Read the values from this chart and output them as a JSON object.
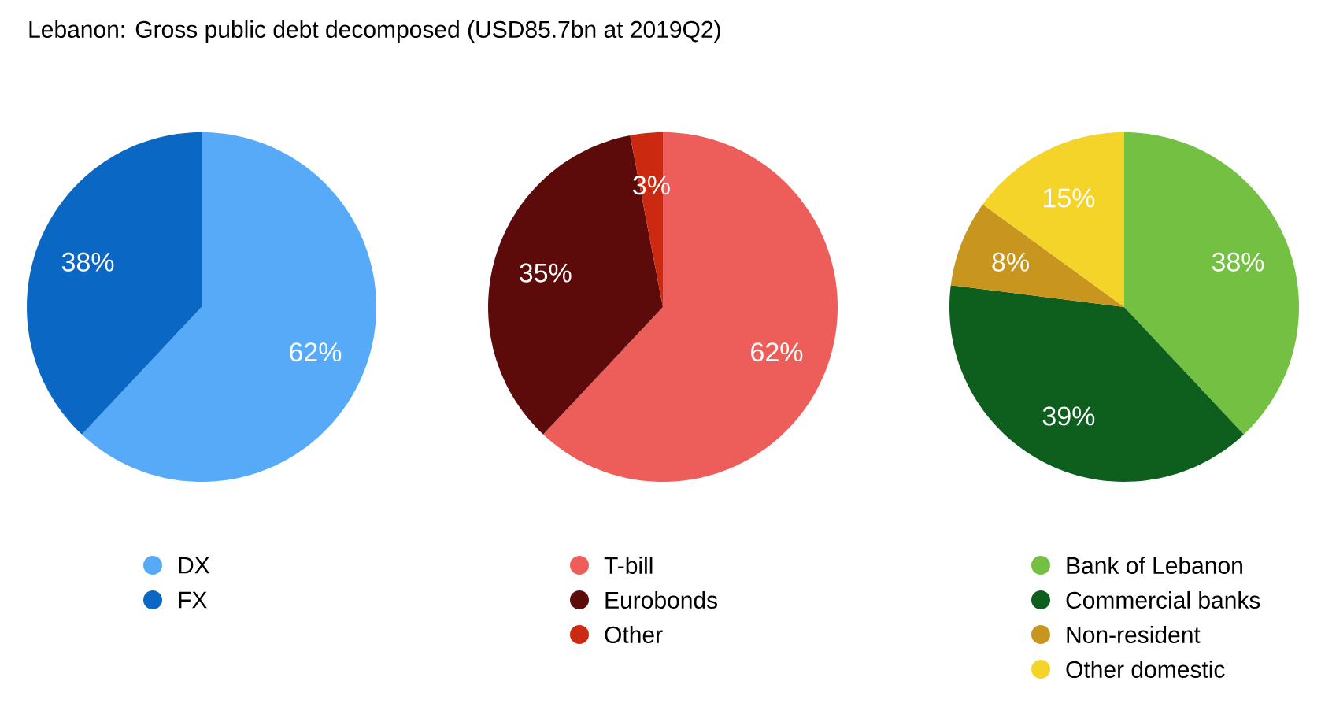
{
  "chart_data": [
    {
      "type": "pie",
      "title": "Lebanon: Gross public debt decomposed (USD85.7bn at 2019Q2)",
      "categories": [
        "DX",
        "FX"
      ],
      "values": [
        62,
        38
      ],
      "colors": [
        "#56aaf7",
        "#0a68c4"
      ],
      "value_labels": [
        "62%",
        "38%"
      ],
      "legend": "bottom"
    },
    {
      "type": "pie",
      "categories": [
        "T-bill",
        "Eurobonds",
        "Other"
      ],
      "values": [
        62,
        35,
        3
      ],
      "colors": [
        "#ed5e5a",
        "#5c0a0a",
        "#cc2a10"
      ],
      "value_labels": [
        "62%",
        "35%",
        "3%"
      ],
      "legend": "bottom"
    },
    {
      "type": "pie",
      "categories": [
        "Bank of Lebanon",
        "Commercial banks",
        "Non-resident",
        "Other domestic"
      ],
      "values": [
        38,
        39,
        8,
        15
      ],
      "colors": [
        "#74c043",
        "#0e5e1e",
        "#c8961e",
        "#f5d42a"
      ],
      "value_labels": [
        "38%",
        "39%",
        "8%",
        "15%"
      ],
      "legend": "bottom"
    }
  ]
}
